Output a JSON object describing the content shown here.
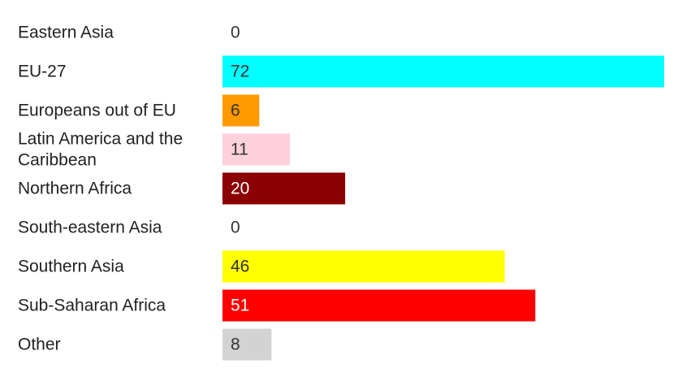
{
  "chart_data": {
    "type": "bar",
    "orientation": "horizontal",
    "title": "",
    "xlabel": "",
    "ylabel": "",
    "grid": false,
    "legend": "none",
    "xlim": [
      0,
      72
    ],
    "categories": [
      "Eastern Asia",
      "EU-27",
      "Europeans out of EU",
      "Latin America and the Caribbean",
      "Northern Africa",
      "South-eastern Asia",
      "Southern Asia",
      "Sub-Saharan Africa",
      "Other"
    ],
    "category_lines": [
      [
        "Eastern Asia"
      ],
      [
        "EU-27"
      ],
      [
        "Europeans out of EU"
      ],
      [
        "Latin America and the",
        "Caribbean"
      ],
      [
        "Northern Africa"
      ],
      [
        "South-eastern Asia"
      ],
      [
        "Southern Asia"
      ],
      [
        "Sub-Saharan Africa"
      ],
      [
        "Other"
      ]
    ],
    "values": [
      0,
      72,
      6,
      11,
      20,
      0,
      46,
      51,
      8
    ],
    "colors": [
      "#00ffff",
      "#00ffff",
      "#ff9900",
      "#ffd1dc",
      "#8b0000",
      "#ff9900",
      "#ffff00",
      "#ff0000",
      "#d3d3d3"
    ],
    "value_label_colors": [
      "#333333",
      "#333333",
      "#333333",
      "#333333",
      "#ffffff",
      "#333333",
      "#333333",
      "#ffffff",
      "#333333"
    ]
  }
}
